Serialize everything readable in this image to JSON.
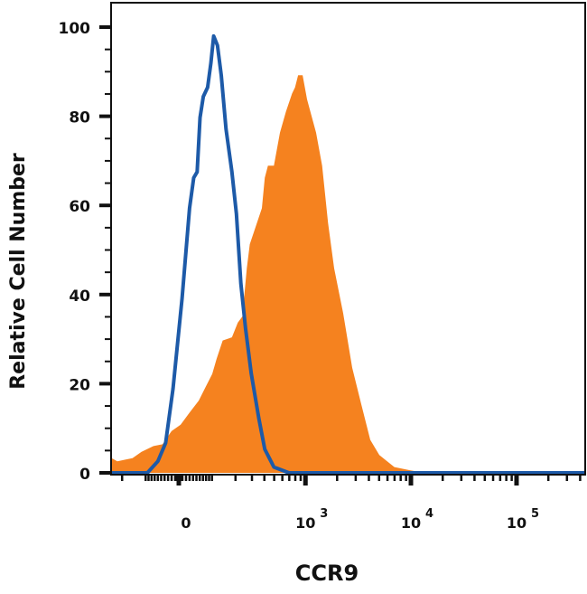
{
  "chart_data": {
    "type": "area",
    "xlabel": "CCR9",
    "ylabel": "Relative Cell Number",
    "x_scale": "biexponential",
    "xlim": [
      -264,
      445000
    ],
    "ylim": [
      0,
      105
    ],
    "x_ticks": [
      {
        "value": 0,
        "base": "0",
        "exp": ""
      },
      {
        "value": 1000,
        "base": "10",
        "exp": "3"
      },
      {
        "value": 10000,
        "base": "10",
        "exp": "4"
      },
      {
        "value": 100000,
        "base": "10",
        "exp": "5"
      }
    ],
    "y_ticks": [
      0,
      20,
      40,
      60,
      80,
      100
    ],
    "grid": false,
    "colors": {
      "filled": "#F5821F",
      "outline": "#1D5AA8"
    },
    "series": [
      {
        "style": "filled",
        "x": [
          -260,
          -226,
          -151,
          -115,
          -74,
          -46,
          -20,
          5,
          30,
          57,
          76,
          101,
          117,
          141,
          182,
          212,
          238,
          265,
          285,
          329,
          378,
          404,
          434,
          497,
          569,
          651,
          744,
          795,
          850,
          939,
          1035,
          1262,
          1441,
          1643,
          1875,
          2283,
          2781,
          3378,
          4122,
          5021,
          6973,
          9677,
          13427,
          445000
        ],
        "y": [
          3.3,
          2.6,
          3.3,
          4.7,
          6.0,
          6.4,
          9.4,
          10.8,
          13.5,
          16.2,
          18.9,
          22.2,
          25.6,
          29.7,
          30.4,
          33.7,
          35.1,
          45.9,
          51.3,
          55.4,
          59.4,
          66.2,
          68.9,
          68.9,
          76.3,
          81.1,
          85.1,
          86.5,
          89.2,
          89.2,
          83.8,
          76.3,
          68.9,
          56.0,
          45.9,
          35.8,
          23.6,
          15.5,
          7.4,
          4.0,
          1.3,
          0.6,
          0,
          0
        ]
      },
      {
        "style": "outline",
        "x": [
          -264,
          -94,
          -60,
          -37,
          -16,
          9,
          30,
          42,
          52,
          61,
          71,
          85,
          96,
          106,
          120,
          135,
          155,
          182,
          205,
          229,
          257,
          295,
          353,
          404,
          497,
          695,
          445000
        ],
        "y": [
          0,
          0,
          2.6,
          6.7,
          18.9,
          39.1,
          59.4,
          66.2,
          67.5,
          79.7,
          84.4,
          86.5,
          91.9,
          98,
          95.9,
          89.2,
          77.1,
          67.5,
          58.1,
          42.5,
          32.4,
          22.3,
          12.1,
          5.3,
          1.3,
          0,
          0
        ]
      }
    ]
  }
}
